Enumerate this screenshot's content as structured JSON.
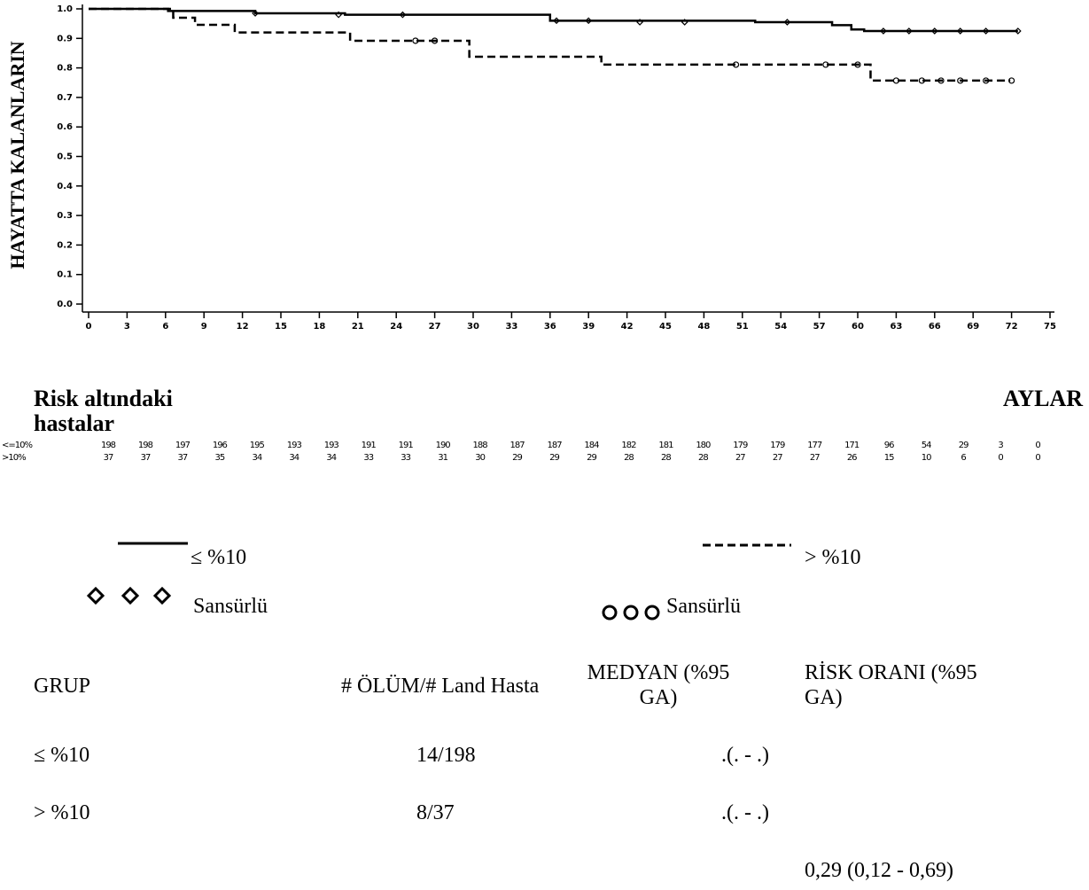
{
  "chart_data": {
    "type": "step",
    "ylabel": "HAYATTA KALANLARIN",
    "xlabel": "AYLAR",
    "xlim": [
      0,
      75
    ],
    "ylim": [
      0,
      1
    ],
    "xticks": [
      0,
      3,
      6,
      9,
      12,
      15,
      18,
      21,
      24,
      27,
      30,
      33,
      36,
      39,
      42,
      45,
      48,
      51,
      54,
      57,
      60,
      63,
      66,
      69,
      72,
      75
    ],
    "yticks": [
      {
        "value": 1,
        "label": "1.0"
      },
      0.9,
      0.8,
      0.7,
      0.6,
      0.5,
      0.4,
      0.3,
      0.2,
      0.1,
      {
        "value": 0,
        "label": "0.0"
      }
    ],
    "series": [
      {
        "name": "≤ %10",
        "color": "#000000",
        "dash": false,
        "x": [
          0,
          6.2,
          13,
          20,
          36,
          52,
          58,
          59.5,
          60.5,
          72.5
        ],
        "values": [
          1,
          0.993,
          0.985,
          0.98,
          0.96,
          0.955,
          0.945,
          0.93,
          0.925,
          0.925
        ],
        "censored_x": [
          13,
          19.5,
          24.5,
          36.5,
          39,
          43,
          46.5,
          54.5,
          62,
          64,
          66,
          68,
          70,
          72.5
        ],
        "censored_y": [
          0.985,
          0.98,
          0.98,
          0.96,
          0.96,
          0.955,
          0.955,
          0.955,
          0.925,
          0.925,
          0.925,
          0.925,
          0.925,
          0.925
        ]
      },
      {
        "name": "> %10",
        "color": "#000000",
        "dash": true,
        "x": [
          0,
          6.6,
          8.3,
          11.4,
          20.4,
          29.7,
          40,
          61,
          71.9
        ],
        "values": [
          1,
          0.97,
          0.946,
          0.92,
          0.892,
          0.838,
          0.811,
          0.757,
          0.757
        ],
        "censored_x": [
          25.5,
          27,
          50.5,
          57.5,
          60,
          63,
          65,
          66.5,
          68,
          70,
          72
        ],
        "censored_y": [
          0.892,
          0.892,
          0.811,
          0.811,
          0.811,
          0.757,
          0.757,
          0.757,
          0.757,
          0.757,
          0.757
        ]
      }
    ]
  },
  "risk_table": {
    "title": "Risk altındaki hastalar",
    "rows": [
      {
        "label": "<=10%",
        "values": [
          "198",
          "198",
          "197",
          "196",
          "195",
          "193",
          "193",
          "191",
          "191",
          "190",
          "188",
          "187",
          "187",
          "184",
          "182",
          "181",
          "180",
          "179",
          "179",
          "177",
          "171",
          "96",
          "54",
          "29",
          "3",
          "0"
        ]
      },
      {
        "label": ">10%",
        "values": [
          "37",
          "37",
          "37",
          "35",
          "34",
          "34",
          "34",
          "33",
          "33",
          "31",
          "30",
          "29",
          "29",
          "29",
          "28",
          "28",
          "28",
          "27",
          "27",
          "27",
          "26",
          "15",
          "10",
          "6",
          "0",
          "0"
        ]
      }
    ]
  },
  "legend": {
    "censored_solid": "Sansürlü",
    "censored_dashed": "Sansürlü"
  },
  "summary_table": {
    "headers": [
      "GRUP",
      "# ÖLÜM/# Land Hasta",
      "MEDYAN (%95 GA)",
      "RİSK ORANI (%95 GA)"
    ],
    "rows": [
      [
        "≤ %10",
        "14/198",
        ".(. - .)"
      ],
      [
        "> %10",
        "8/37",
        ".(. - .)"
      ]
    ],
    "hazard_ratio": "0,29 (0,12 - 0,69)"
  }
}
